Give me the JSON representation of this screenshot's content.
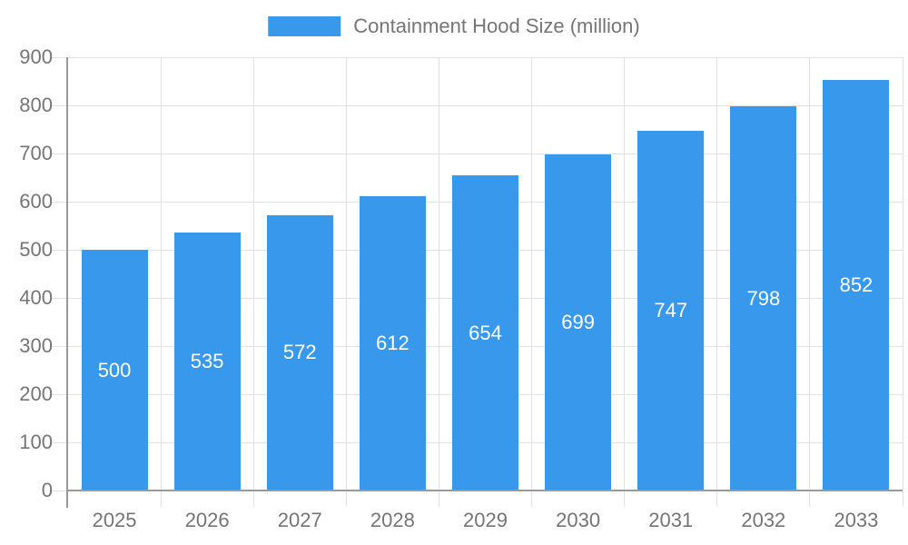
{
  "legend": {
    "label": "Containment Hood Size (million)",
    "swatch_color": "#3899ec"
  },
  "chart_data": {
    "type": "bar",
    "categories": [
      "2025",
      "2026",
      "2027",
      "2028",
      "2029",
      "2030",
      "2031",
      "2032",
      "2033"
    ],
    "values": [
      500,
      535,
      572,
      612,
      654,
      699,
      747,
      798,
      852
    ],
    "title": "Containment Hood Size (million)",
    "xlabel": "",
    "ylabel": "",
    "ylim": [
      0,
      900
    ],
    "ytick_step": 100,
    "grid": true,
    "legend_position": "top-center",
    "colors": {
      "bar": "#3899ec",
      "value_label": "#ffffff",
      "axis_text": "#757575",
      "gridline": "#e2e2e2",
      "axis_line": "#999999"
    }
  }
}
